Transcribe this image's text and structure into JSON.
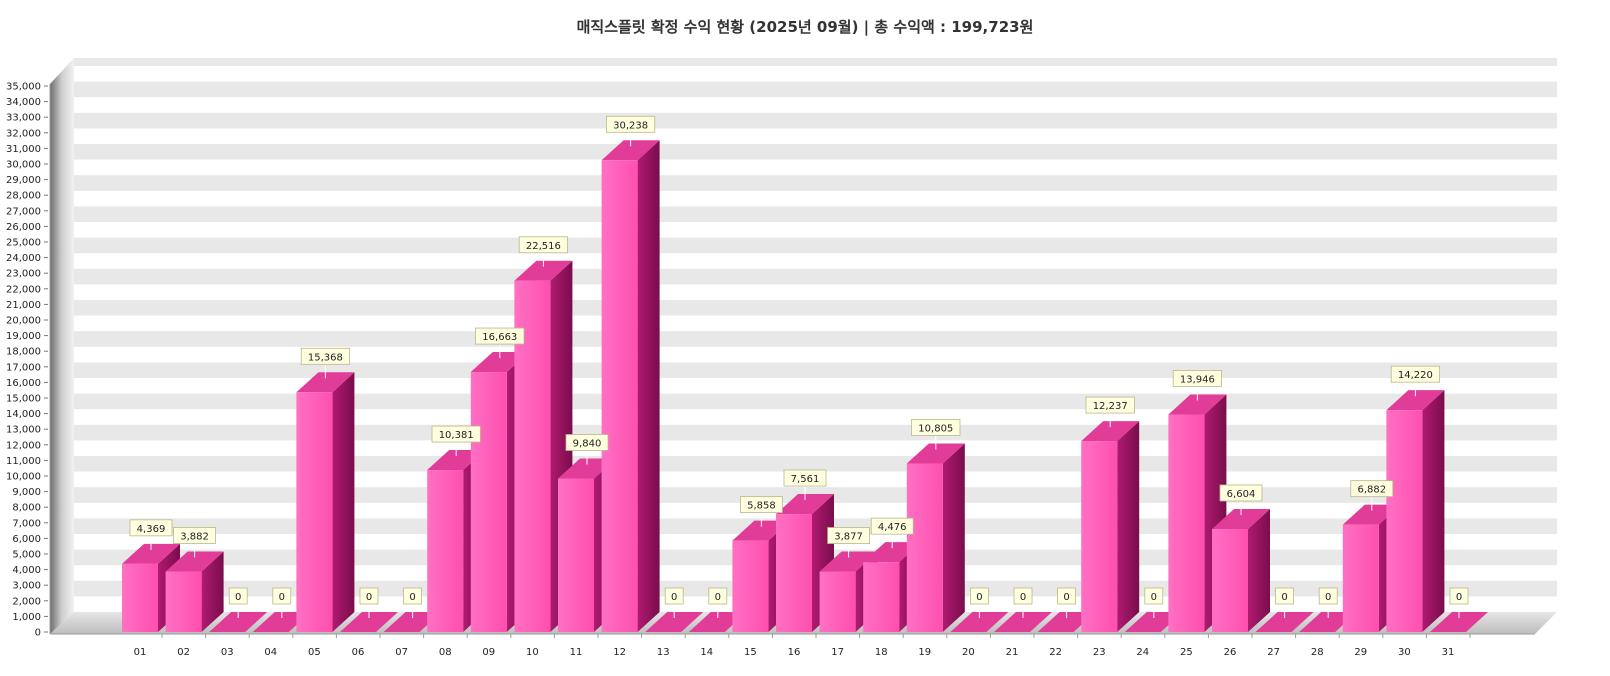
{
  "chart_data": {
    "type": "bar",
    "title": "매직스플릿 확정 수익 현황 (2025년 09월)  |  총 수익액 : 199,723원",
    "xlabel": "",
    "ylabel": "",
    "ylim": [
      0,
      35000
    ],
    "y_tick_step": 1000,
    "grid": true,
    "legend": "none",
    "categories": [
      "01",
      "02",
      "03",
      "04",
      "05",
      "06",
      "07",
      "08",
      "09",
      "10",
      "11",
      "12",
      "13",
      "14",
      "15",
      "16",
      "17",
      "18",
      "19",
      "20",
      "21",
      "22",
      "23",
      "24",
      "25",
      "26",
      "27",
      "28",
      "29",
      "30",
      "31"
    ],
    "values": [
      4369,
      3882,
      0,
      0,
      15368,
      0,
      0,
      10381,
      16663,
      22516,
      9840,
      30238,
      0,
      0,
      5858,
      7561,
      3877,
      4476,
      10805,
      0,
      0,
      0,
      12237,
      0,
      13946,
      6604,
      0,
      0,
      6882,
      14220,
      0
    ],
    "colors": {
      "bar_front": "#ff5cb8",
      "bar_side": "#c01f7c",
      "bar_top": "#e23c99",
      "label_bg": "#ffffe0",
      "grid_band": "#e8e8e8"
    }
  }
}
